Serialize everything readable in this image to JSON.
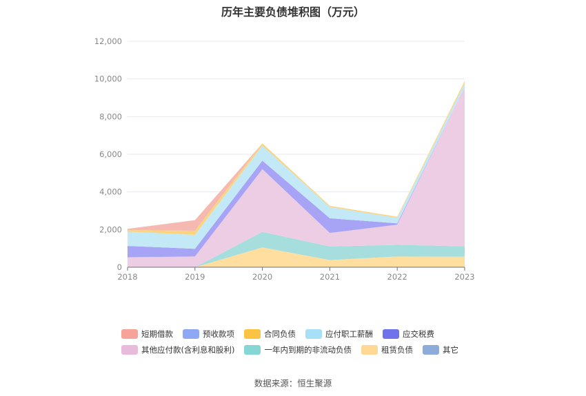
{
  "chart_data": {
    "type": "area",
    "stacked": true,
    "title": "历年主要负债堆积图（万元）",
    "categories": [
      "2018",
      "2019",
      "2020",
      "2021",
      "2022",
      "2023"
    ],
    "ylim": [
      0,
      12000
    ],
    "yticks": [
      "0",
      "2,000",
      "4,000",
      "6,000",
      "8,000",
      "10,000",
      "12,000"
    ],
    "grid": true,
    "legend_position": "bottom",
    "series": [
      {
        "name": "租赁负债",
        "color": "#FFDEA0",
        "values": [
          0,
          0,
          1050,
          380,
          570,
          560
        ]
      },
      {
        "name": "一年内到期的非流动负债",
        "color": "#A6DEDE",
        "values": [
          0,
          0,
          830,
          720,
          620,
          550
        ]
      },
      {
        "name": "其他应付款(含利息和股利)",
        "color": "#EDCDE3",
        "values": [
          530,
          570,
          3330,
          720,
          1070,
          8470
        ]
      },
      {
        "name": "应交税费",
        "color": "#A7A3F5",
        "values": [
          600,
          410,
          450,
          780,
          70,
          0
        ]
      },
      {
        "name": "应付职工薪酬",
        "color": "#C3E9F6",
        "values": [
          760,
          740,
          800,
          600,
          290,
          200
        ]
      },
      {
        "name": "合同负债",
        "color": "#FBD57E",
        "values": [
          80,
          220,
          120,
          60,
          60,
          110
        ]
      },
      {
        "name": "预收款项",
        "color": "#A8C4F7",
        "values": [
          0,
          0,
          0,
          0,
          0,
          0
        ]
      },
      {
        "name": "短期借款",
        "color": "#F6B9B1",
        "values": [
          70,
          560,
          0,
          0,
          0,
          0
        ]
      },
      {
        "name": "其它",
        "color": "#9DB5DE",
        "values": [
          0,
          0,
          0,
          0,
          0,
          0
        ]
      }
    ],
    "legend_order": [
      "短期借款",
      "预收款项",
      "合同负债",
      "应付职工薪酬",
      "应交税费",
      "其他应付款(含利息和股利)",
      "一年内到期的非流动负债",
      "租赁负债",
      "其它"
    ],
    "legend_colors": {
      "短期借款": "#F6A49A",
      "预收款项": "#8EA8F5",
      "合同负债": "#FBC343",
      "应付职工薪酬": "#A7DFF7",
      "应交税费": "#6F72E8",
      "其他应付款(含利息和股利)": "#E8BADB",
      "一年内到期的非流动负债": "#86D6D6",
      "租赁负债": "#FFD896",
      "其它": "#8EACDA"
    }
  },
  "source": "数据来源：恒生聚源"
}
